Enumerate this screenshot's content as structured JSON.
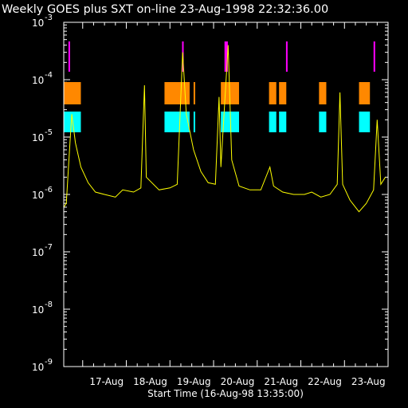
{
  "chart_data": {
    "type": "line",
    "title": "Weekly GOES plus SXT on-line 23-Aug-1998 22:32:36.00",
    "xlabel": "Start Time (16-Aug-98 13:35:00)",
    "ylabel": "",
    "yscale": "log",
    "ylim": [
      1e-09,
      0.001
    ],
    "xlim": [
      "1998-08-16 13:35",
      "1998-08-23 23:59"
    ],
    "y_ticks": [
      {
        "base": "10",
        "exp": "-9",
        "value": 1e-09
      },
      {
        "base": "10",
        "exp": "-8",
        "value": 1e-08
      },
      {
        "base": "10",
        "exp": "-7",
        "value": 1e-07
      },
      {
        "base": "10",
        "exp": "-6",
        "value": 1e-06
      },
      {
        "base": "10",
        "exp": "-5",
        "value": 1e-05
      },
      {
        "base": "10",
        "exp": "-4",
        "value": 0.0001
      },
      {
        "base": "10",
        "exp": "-3",
        "value": 0.001
      }
    ],
    "x_ticks": [
      {
        "label": "17-Aug",
        "date": "1998-08-17 00:00"
      },
      {
        "label": "18-Aug",
        "date": "1998-08-18 00:00"
      },
      {
        "label": "19-Aug",
        "date": "1998-08-19 00:00"
      },
      {
        "label": "20-Aug",
        "date": "1998-08-20 00:00"
      },
      {
        "label": "21-Aug",
        "date": "1998-08-21 00:00"
      },
      {
        "label": "22-Aug",
        "date": "1998-08-22 00:00"
      },
      {
        "label": "23-Aug",
        "date": "1998-08-23 00:00"
      }
    ],
    "series": [
      {
        "color": "#ffff00",
        "points": [
          [
            "1998-08-16 13:35",
            6e-07
          ],
          [
            "1998-08-16 15:00",
            7e-07
          ],
          [
            "1998-08-16 17:00",
            8e-06
          ],
          [
            "1998-08-16 18:00",
            2.5e-05
          ],
          [
            "1998-08-16 20:00",
            8e-06
          ],
          [
            "1998-08-16 23:00",
            3e-06
          ],
          [
            "1998-08-17 03:00",
            1.6e-06
          ],
          [
            "1998-08-17 07:00",
            1.1e-06
          ],
          [
            "1998-08-17 12:00",
            1e-06
          ],
          [
            "1998-08-17 18:00",
            9e-07
          ],
          [
            "1998-08-17 22:00",
            1.2e-06
          ],
          [
            "1998-08-18 04:00",
            1.1e-06
          ],
          [
            "1998-08-18 08:00",
            1.3e-06
          ],
          [
            "1998-08-18 10:00",
            8e-05
          ],
          [
            "1998-08-18 11:00",
            2e-06
          ],
          [
            "1998-08-18 18:00",
            1.2e-06
          ],
          [
            "1998-08-19 00:00",
            1.3e-06
          ],
          [
            "1998-08-19 04:00",
            1.5e-06
          ],
          [
            "1998-08-19 07:00",
            0.0003
          ],
          [
            "1998-08-19 09:00",
            2.5e-05
          ],
          [
            "1998-08-19 13:00",
            6e-06
          ],
          [
            "1998-08-19 17:00",
            2.5e-06
          ],
          [
            "1998-08-19 21:00",
            1.6e-06
          ],
          [
            "1998-08-20 01:00",
            1.5e-06
          ],
          [
            "1998-08-20 03:00",
            5e-05
          ],
          [
            "1998-08-20 04:00",
            3e-06
          ],
          [
            "1998-08-20 08:00",
            0.0004
          ],
          [
            "1998-08-20 10:00",
            4e-06
          ],
          [
            "1998-08-20 14:00",
            1.4e-06
          ],
          [
            "1998-08-20 20:00",
            1.2e-06
          ],
          [
            "1998-08-21 02:00",
            1.2e-06
          ],
          [
            "1998-08-21 07:00",
            3e-06
          ],
          [
            "1998-08-21 09:00",
            1.4e-06
          ],
          [
            "1998-08-21 14:00",
            1.1e-06
          ],
          [
            "1998-08-21 20:00",
            1e-06
          ],
          [
            "1998-08-22 02:00",
            1e-06
          ],
          [
            "1998-08-22 06:00",
            1.1e-06
          ],
          [
            "1998-08-22 11:00",
            9e-07
          ],
          [
            "1998-08-22 16:00",
            1e-06
          ],
          [
            "1998-08-22 20:00",
            1.5e-06
          ],
          [
            "1998-08-22 21:30",
            6e-05
          ],
          [
            "1998-08-22 23:00",
            1.5e-06
          ],
          [
            "1998-08-23 03:00",
            8e-07
          ],
          [
            "1998-08-23 08:00",
            5e-07
          ],
          [
            "1998-08-23 12:00",
            7e-07
          ],
          [
            "1998-08-23 16:00",
            1.2e-06
          ],
          [
            "1998-08-23 18:00",
            2e-05
          ],
          [
            "1998-08-23 20:00",
            1.5e-06
          ],
          [
            "1998-08-23 22:30",
            2e-06
          ]
        ]
      }
    ],
    "sxt_bands": [
      {
        "color": "#ff00ff",
        "intervals": [
          [
            "1998-08-16 16:10",
            "1998-08-16 16:30"
          ],
          [
            "1998-08-19 06:40",
            "1998-08-19 06:55"
          ],
          [
            "1998-08-20 06:00",
            "1998-08-20 07:50"
          ],
          [
            "1998-08-21 15:50",
            "1998-08-21 16:05"
          ],
          [
            "1998-08-23 16:00",
            "1998-08-23 16:20"
          ]
        ]
      },
      {
        "color": "#ff8800",
        "intervals": [
          [
            "1998-08-16 13:35",
            "1998-08-16 23:00"
          ],
          [
            "1998-08-18 21:00",
            "1998-08-19 10:50"
          ],
          [
            "1998-08-19 13:00",
            "1998-08-19 13:30"
          ],
          [
            "1998-08-20 04:00",
            "1998-08-20 14:00"
          ],
          [
            "1998-08-21 06:30",
            "1998-08-21 10:30"
          ],
          [
            "1998-08-21 12:00",
            "1998-08-21 16:00"
          ],
          [
            "1998-08-22 10:00",
            "1998-08-22 14:00"
          ],
          [
            "1998-08-23 08:00",
            "1998-08-23 14:00"
          ]
        ]
      },
      {
        "color": "#00ffff",
        "intervals": [
          [
            "1998-08-16 13:35",
            "1998-08-16 23:00"
          ],
          [
            "1998-08-18 21:00",
            "1998-08-19 10:50"
          ],
          [
            "1998-08-19 13:00",
            "1998-08-19 13:30"
          ],
          [
            "1998-08-20 04:00",
            "1998-08-20 14:00"
          ],
          [
            "1998-08-21 06:30",
            "1998-08-21 10:30"
          ],
          [
            "1998-08-21 12:00",
            "1998-08-21 16:00"
          ],
          [
            "1998-08-22 10:00",
            "1998-08-22 14:00"
          ],
          [
            "1998-08-23 08:00",
            "1998-08-23 14:00"
          ]
        ]
      }
    ],
    "grid": false,
    "background": "#000000",
    "axis_color": "#ffffff"
  }
}
